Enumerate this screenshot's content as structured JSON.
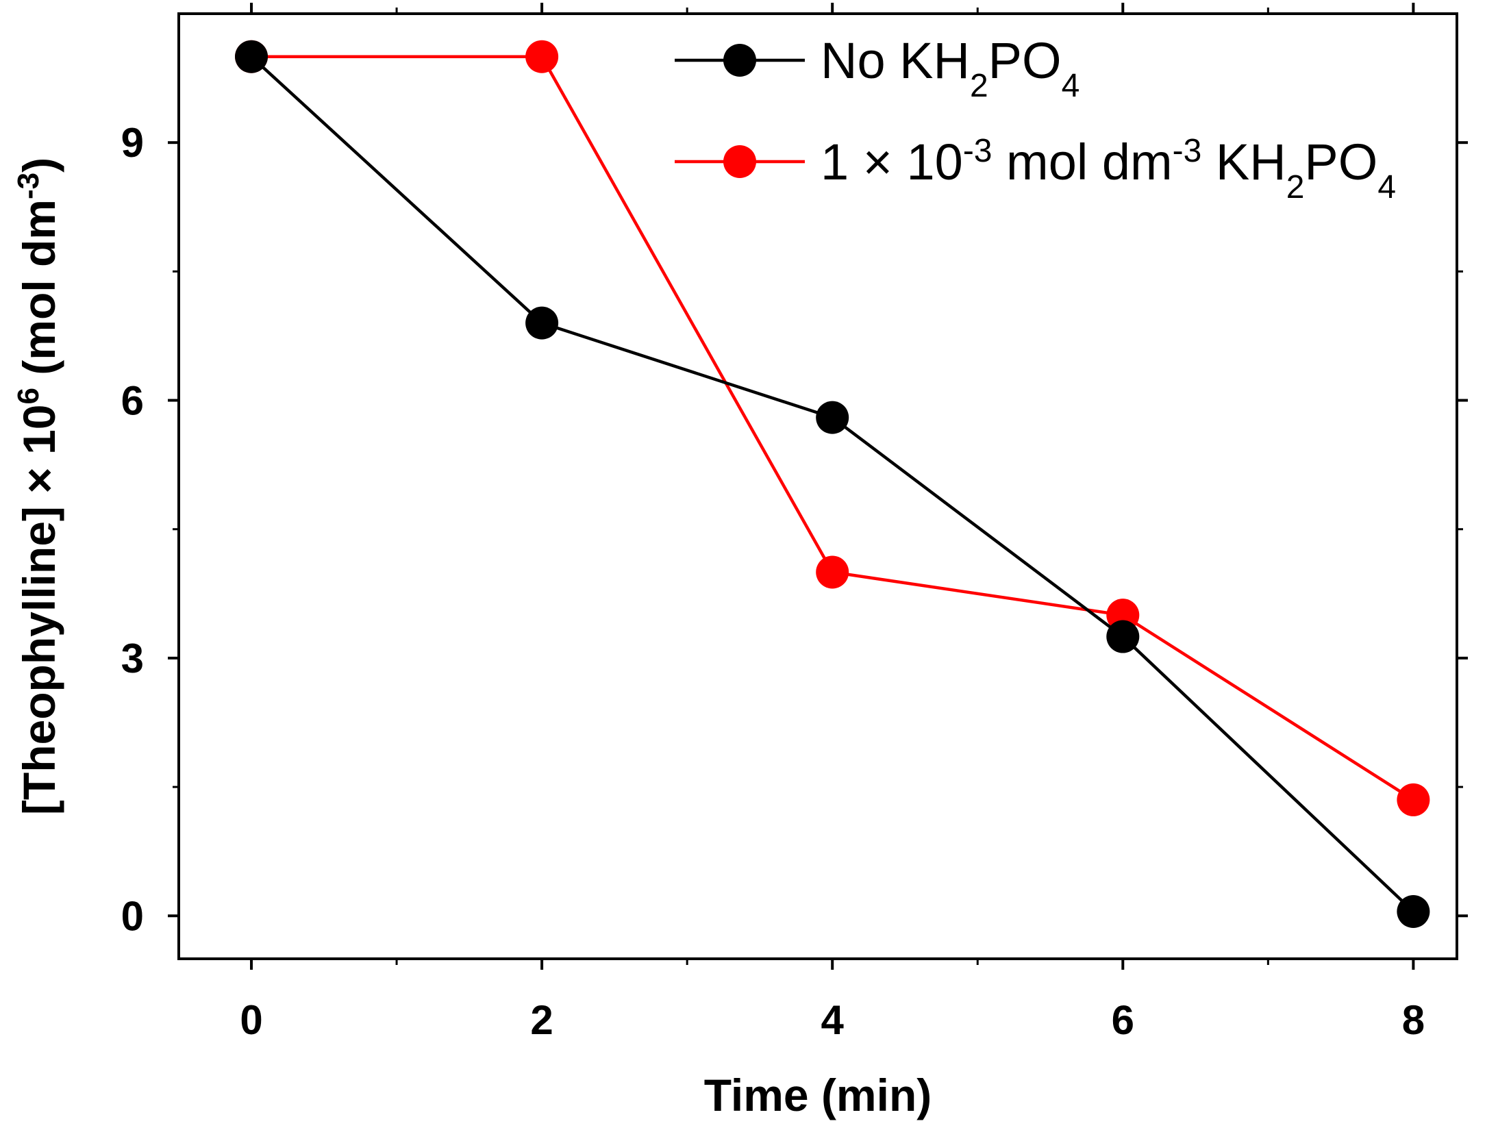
{
  "chart_data": {
    "type": "line",
    "title": "",
    "xlabel": "Time (min)",
    "ylabel": {
      "main": "[Theophylline] × 10",
      "exp": "6",
      "unit": " (mol dm",
      "unit_exp": "-3",
      "close": ")"
    },
    "xlim": [
      -0.5,
      8.3
    ],
    "ylim": [
      -0.5,
      10.5
    ],
    "x_ticks": [
      0,
      2,
      4,
      6,
      8
    ],
    "x_minor_ticks": [
      1,
      3,
      5,
      7
    ],
    "y_ticks": [
      0,
      3,
      6,
      9
    ],
    "y_minor_ticks": [
      1.5,
      4.5,
      7.5
    ],
    "legend_position": "top-right",
    "series": [
      {
        "name": "No KH2PO4",
        "color": "#000000",
        "x": [
          0,
          2,
          4,
          6,
          8
        ],
        "y": [
          10.0,
          6.9,
          5.8,
          3.25,
          0.05
        ],
        "legend": {
          "parts": [
            {
              "text": "No KH",
              "shift": "none"
            },
            {
              "text": "2",
              "shift": "sub"
            },
            {
              "text": "PO",
              "shift": "none"
            },
            {
              "text": "4",
              "shift": "sub"
            }
          ]
        }
      },
      {
        "name": "1 × 10-3 mol dm-3 KH2PO4",
        "color": "#ff0000",
        "x": [
          0,
          2,
          4,
          6,
          8
        ],
        "y": [
          10.0,
          10.0,
          4.0,
          3.5,
          1.35
        ],
        "legend": {
          "parts": [
            {
              "text": "1 × 10",
              "shift": "none"
            },
            {
              "text": "-3",
              "shift": "sup"
            },
            {
              "text": " mol dm",
              "shift": "none"
            },
            {
              "text": "-3",
              "shift": "sup"
            },
            {
              "text": " KH",
              "shift": "none"
            },
            {
              "text": "2",
              "shift": "sub"
            },
            {
              "text": "PO",
              "shift": "none"
            },
            {
              "text": "4",
              "shift": "sub"
            }
          ]
        }
      }
    ]
  }
}
